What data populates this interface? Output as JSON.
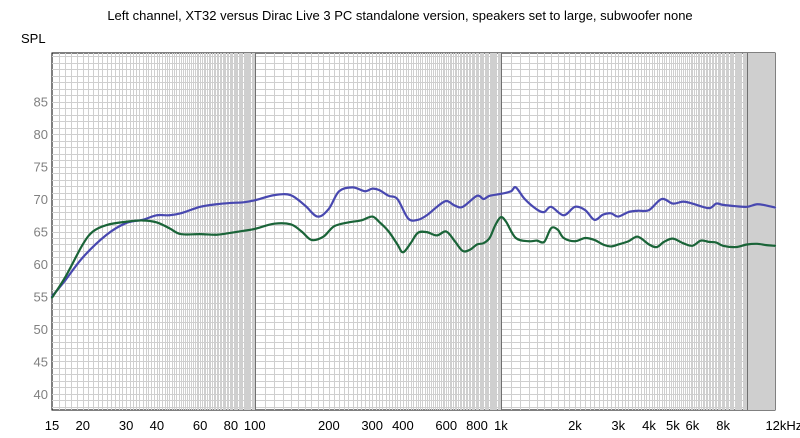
{
  "chart_data": {
    "type": "line",
    "title": "Left channel, XT32 versus Dirac Live 3 PC standalone version, speakers set to large, subwoofer none",
    "ylabel": "SPL",
    "xlabel": "",
    "x_scale": "log",
    "xlim": [
      15,
      13000
    ],
    "ylim": [
      37.5,
      92.5
    ],
    "grid": true,
    "y_ticks": [
      40,
      45,
      50,
      55,
      60,
      65,
      70,
      75,
      80,
      85
    ],
    "x_ticks": [
      {
        "value": 15,
        "label": "15"
      },
      {
        "value": 20,
        "label": "20"
      },
      {
        "value": 30,
        "label": "30"
      },
      {
        "value": 40,
        "label": "40"
      },
      {
        "value": 60,
        "label": "60"
      },
      {
        "value": 80,
        "label": "80"
      },
      {
        "value": 100,
        "label": "100"
      },
      {
        "value": 200,
        "label": "200"
      },
      {
        "value": 300,
        "label": "300"
      },
      {
        "value": 400,
        "label": "400"
      },
      {
        "value": 600,
        "label": "600"
      },
      {
        "value": 800,
        "label": "800"
      },
      {
        "value": 1000,
        "label": "1k"
      },
      {
        "value": 2000,
        "label": "2k"
      },
      {
        "value": 3000,
        "label": "3k"
      },
      {
        "value": 4000,
        "label": "4k"
      },
      {
        "value": 5000,
        "label": "5k"
      },
      {
        "value": 6000,
        "label": "6k"
      },
      {
        "value": 8000,
        "label": "8k"
      },
      {
        "value": 12000,
        "label": "12kHz"
      }
    ],
    "series": [
      {
        "color": "#4848b0",
        "points": [
          [
            15,
            55
          ],
          [
            17,
            57.5
          ],
          [
            20,
            61
          ],
          [
            25,
            64.5
          ],
          [
            30,
            66.3
          ],
          [
            35,
            66.8
          ],
          [
            40,
            67.5
          ],
          [
            45,
            67.5
          ],
          [
            50,
            67.8
          ],
          [
            60,
            68.8
          ],
          [
            70,
            69.2
          ],
          [
            80,
            69.4
          ],
          [
            90,
            69.5
          ],
          [
            100,
            69.8
          ],
          [
            120,
            70.6
          ],
          [
            140,
            70.6
          ],
          [
            160,
            69
          ],
          [
            180,
            67.3
          ],
          [
            200,
            68.5
          ],
          [
            220,
            71.2
          ],
          [
            250,
            71.8
          ],
          [
            280,
            71.2
          ],
          [
            300,
            71.6
          ],
          [
            320,
            71.4
          ],
          [
            350,
            70.5
          ],
          [
            380,
            70
          ],
          [
            420,
            67
          ],
          [
            460,
            66.8
          ],
          [
            500,
            67.5
          ],
          [
            550,
            68.8
          ],
          [
            600,
            69.7
          ],
          [
            650,
            69
          ],
          [
            700,
            68.8
          ],
          [
            800,
            70.5
          ],
          [
            850,
            70
          ],
          [
            900,
            70.5
          ],
          [
            1000,
            70.8
          ],
          [
            1100,
            71.2
          ],
          [
            1150,
            71.8
          ],
          [
            1250,
            70
          ],
          [
            1400,
            68.4
          ],
          [
            1500,
            68
          ],
          [
            1600,
            68.8
          ],
          [
            1800,
            67.5
          ],
          [
            2000,
            68.8
          ],
          [
            2200,
            68.3
          ],
          [
            2400,
            66.8
          ],
          [
            2600,
            67.6
          ],
          [
            2800,
            67.8
          ],
          [
            3000,
            67.3
          ],
          [
            3300,
            68
          ],
          [
            3600,
            68.2
          ],
          [
            4000,
            68.3
          ],
          [
            4500,
            70
          ],
          [
            5000,
            69.3
          ],
          [
            5500,
            69.6
          ],
          [
            6000,
            69.3
          ],
          [
            7000,
            68.6
          ],
          [
            7500,
            69.3
          ],
          [
            8000,
            69.1
          ],
          [
            9000,
            68.9
          ],
          [
            10000,
            68.8
          ],
          [
            11000,
            69.2
          ],
          [
            12000,
            69
          ],
          [
            13000,
            68.7
          ]
        ]
      },
      {
        "color": "#1a6438",
        "points": [
          [
            15,
            54.8
          ],
          [
            17,
            58
          ],
          [
            20,
            63
          ],
          [
            22,
            65
          ],
          [
            25,
            66
          ],
          [
            30,
            66.5
          ],
          [
            35,
            66.7
          ],
          [
            40,
            66.4
          ],
          [
            45,
            65.5
          ],
          [
            50,
            64.6
          ],
          [
            60,
            64.6
          ],
          [
            70,
            64.5
          ],
          [
            80,
            64.8
          ],
          [
            90,
            65.1
          ],
          [
            100,
            65.4
          ],
          [
            120,
            66.2
          ],
          [
            140,
            66.1
          ],
          [
            155,
            65
          ],
          [
            170,
            63.7
          ],
          [
            190,
            64.2
          ],
          [
            210,
            65.8
          ],
          [
            240,
            66.4
          ],
          [
            270,
            66.7
          ],
          [
            300,
            67.3
          ],
          [
            320,
            66.5
          ],
          [
            350,
            65
          ],
          [
            380,
            63
          ],
          [
            400,
            61.8
          ],
          [
            430,
            63.2
          ],
          [
            460,
            64.8
          ],
          [
            500,
            64.9
          ],
          [
            550,
            64.4
          ],
          [
            600,
            65
          ],
          [
            650,
            63.5
          ],
          [
            700,
            62
          ],
          [
            750,
            62.2
          ],
          [
            800,
            63
          ],
          [
            850,
            63.2
          ],
          [
            900,
            64
          ],
          [
            950,
            66
          ],
          [
            1000,
            67.2
          ],
          [
            1050,
            66.5
          ],
          [
            1150,
            64
          ],
          [
            1300,
            63.5
          ],
          [
            1400,
            63.6
          ],
          [
            1500,
            63.4
          ],
          [
            1600,
            65.5
          ],
          [
            1700,
            65.3
          ],
          [
            1800,
            64
          ],
          [
            2000,
            63.5
          ],
          [
            2200,
            64
          ],
          [
            2400,
            63.7
          ],
          [
            2600,
            63
          ],
          [
            2800,
            62.7
          ],
          [
            3000,
            63
          ],
          [
            3300,
            63.5
          ],
          [
            3600,
            64.2
          ],
          [
            4000,
            63
          ],
          [
            4300,
            62.6
          ],
          [
            4600,
            63.4
          ],
          [
            5000,
            63.9
          ],
          [
            5500,
            63.2
          ],
          [
            6000,
            62.8
          ],
          [
            6500,
            63.6
          ],
          [
            7000,
            63.4
          ],
          [
            7500,
            63.3
          ],
          [
            8000,
            62.8
          ],
          [
            9000,
            62.6
          ],
          [
            10000,
            63
          ],
          [
            11000,
            63.1
          ],
          [
            12000,
            62.9
          ],
          [
            13000,
            62.8
          ]
        ]
      }
    ]
  }
}
